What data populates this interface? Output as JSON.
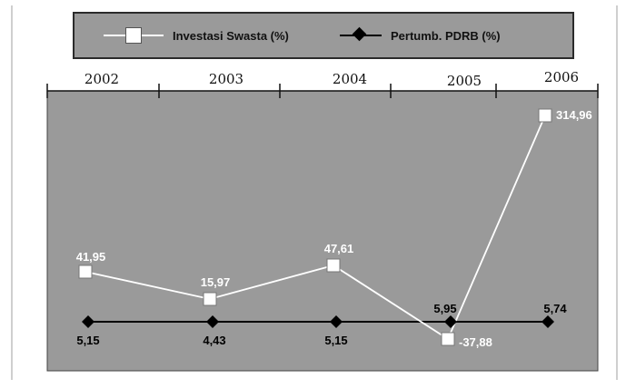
{
  "chart_data": {
    "type": "line",
    "categories": [
      "2002",
      "2003",
      "2004",
      "2005",
      "2006"
    ],
    "series": [
      {
        "name": "Investasi Swasta (%)",
        "values": [
          41.95,
          15.97,
          47.61,
          -37.88,
          314.96
        ],
        "labels": [
          "41,95",
          "15,97",
          "47,61",
          "-37,88",
          "314,96"
        ],
        "color": "#ffffff",
        "marker": "square"
      },
      {
        "name": "Pertumb. PDRB (%)",
        "values": [
          5.15,
          4.43,
          5.15,
          5.95,
          5.74
        ],
        "labels": [
          "5,15",
          "4,43",
          "5,15",
          "5,95",
          "5,74"
        ],
        "color": "#000000",
        "marker": "diamond"
      }
    ],
    "legend": "top",
    "plot_background": "#9a9a9a",
    "grid": false
  }
}
